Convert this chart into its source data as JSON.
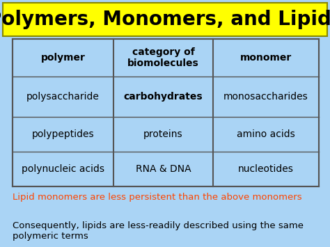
{
  "title": "Polymers, Monomers, and Lipids",
  "title_bg": "#ffff00",
  "title_color": "#000000",
  "title_fontsize": 20,
  "bg_color": "#aad4f5",
  "table_bg": "#aad4f5",
  "table_border_color": "#555555",
  "headers": [
    "polymer",
    "category of\nbiomolecules",
    "monomer"
  ],
  "rows": [
    [
      "polysaccharide",
      "carbohydrates",
      "monosaccharides"
    ],
    [
      "polypeptides",
      "proteins",
      "amino acids"
    ],
    [
      "polynucleic acids",
      "RNA & DNA",
      "nucleotides"
    ]
  ],
  "header_fontsize": 10,
  "cell_fontsize": 10,
  "note1": "Lipid monomers are less persistent than the above monomers",
  "note1_color": "#ff4500",
  "note2": "Consequently, lipids are less-readily described using the same\npolymeric terms",
  "note2_color": "#000000",
  "note_fontsize": 9.5
}
